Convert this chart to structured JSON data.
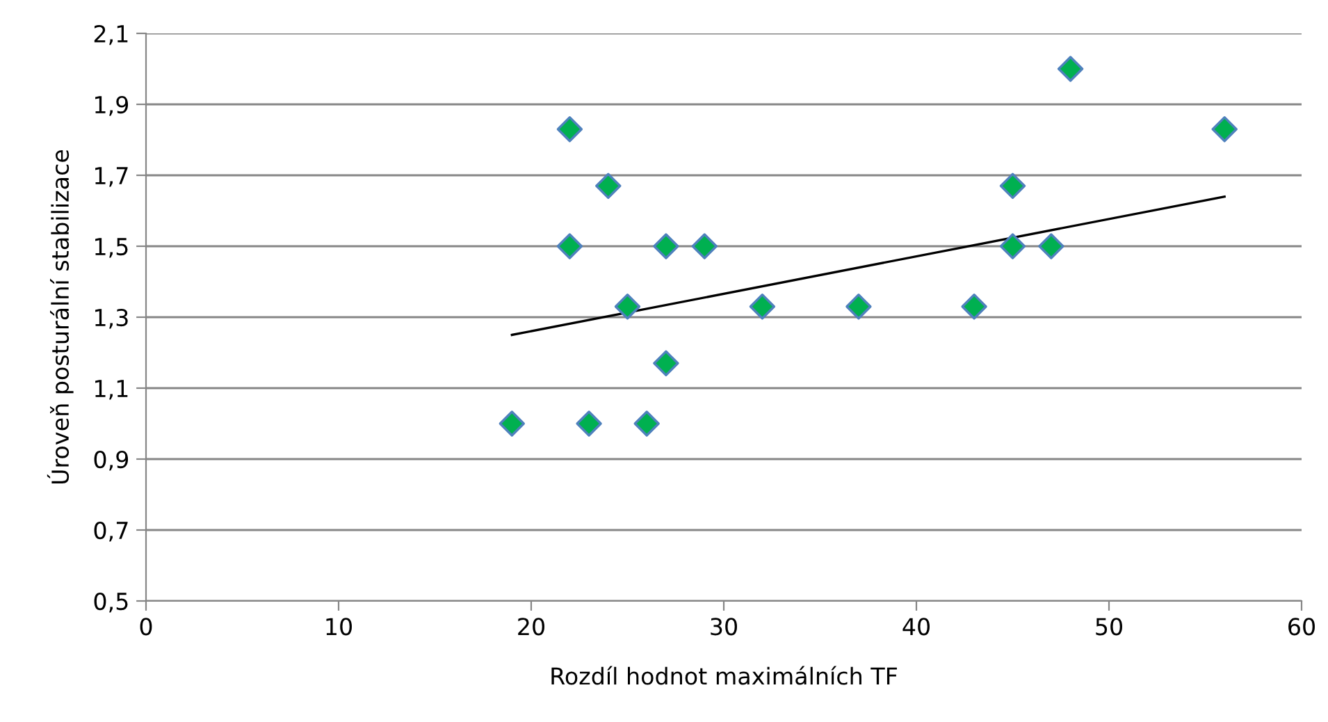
{
  "chart_data": {
    "type": "scatter",
    "xlabel": "Rozdíl hodnot maximálních TF",
    "ylabel": "Úroveň posturální stabilizace",
    "xlim": [
      0,
      60
    ],
    "xticks": [
      0,
      10,
      20,
      30,
      40,
      50,
      60
    ],
    "ylim": [
      0.5,
      2.1
    ],
    "yticks": [
      {
        "value": 0.5,
        "label": "0,5"
      },
      {
        "value": 0.7,
        "label": "0,7"
      },
      {
        "value": 0.9,
        "label": "0,9"
      },
      {
        "value": 1.1,
        "label": "1,1"
      },
      {
        "value": 1.3,
        "label": "1,3"
      },
      {
        "value": 1.5,
        "label": "1,5"
      },
      {
        "value": 1.7,
        "label": "1,7"
      },
      {
        "value": 1.9,
        "label": "1,9"
      },
      {
        "value": 2.1,
        "label": "2,1"
      }
    ],
    "grid": "y",
    "series": [
      {
        "marker": "diamond",
        "color": "#00b050",
        "x": [
          19,
          22,
          22,
          23,
          24,
          25,
          26,
          27,
          27,
          29,
          32,
          37,
          43,
          45,
          45,
          47,
          48,
          56
        ],
        "values": [
          1.0,
          1.83,
          1.5,
          1.0,
          1.67,
          1.33,
          1.0,
          1.5,
          1.17,
          1.5,
          1.33,
          1.33,
          1.33,
          1.67,
          1.5,
          1.5,
          2.0,
          1.83
        ]
      },
      {
        "type": "line",
        "marker": "none",
        "color": "#000000",
        "x": [
          19,
          56
        ],
        "values": [
          1.25,
          1.64
        ]
      }
    ]
  }
}
